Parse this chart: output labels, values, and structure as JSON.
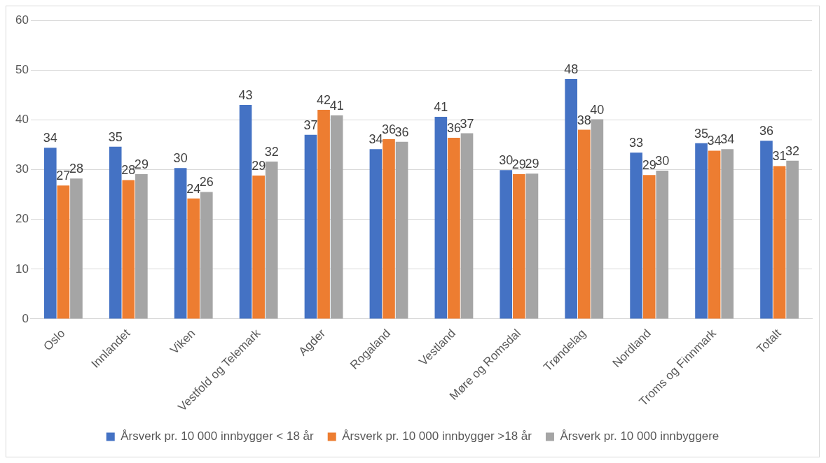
{
  "chart_data": {
    "type": "bar",
    "categories": [
      "Oslo",
      "Innlandet",
      "Viken",
      "Vestfold og Telemark",
      "Agder",
      "Rogaland",
      "Vestland",
      "Møre og Romsdal",
      "Trøndelag",
      "Nordland",
      "Troms og Finnmark",
      "Totalt"
    ],
    "series": [
      {
        "name": "Årsverk pr. 10 000 innbygger < 18 år",
        "color": "#4472c4",
        "values": [
          34.4,
          34.6,
          30.3,
          43.0,
          37.0,
          34.1,
          40.6,
          29.9,
          48.2,
          33.4,
          35.3,
          35.8
        ],
        "value_labels": [
          "34",
          "35",
          "30",
          "43",
          "37",
          "34",
          "41",
          "30",
          "48",
          "33",
          "35",
          "36"
        ]
      },
      {
        "name": "Årsverk pr. 10 000 innbygger >18 år",
        "color": "#ed7d31",
        "values": [
          26.8,
          27.9,
          24.2,
          28.8,
          42.0,
          36.1,
          36.4,
          29.1,
          38.0,
          28.9,
          33.8,
          30.7
        ],
        "value_labels": [
          "27",
          "28",
          "24",
          "29",
          "42",
          "36",
          "36",
          "29",
          "38",
          "29",
          "34",
          "31"
        ]
      },
      {
        "name": "Årsverk pr. 10 000 innbyggere",
        "color": "#a5a5a5",
        "values": [
          28.2,
          29.1,
          25.5,
          31.6,
          40.9,
          35.6,
          37.3,
          29.2,
          40.1,
          29.8,
          34.1,
          31.8
        ],
        "value_labels": [
          "28",
          "29",
          "26",
          "32",
          "41",
          "36",
          "37",
          "29",
          "40",
          "30",
          "34",
          "32"
        ]
      }
    ],
    "ylim": [
      0,
      60
    ],
    "yticks": [
      0,
      10,
      20,
      30,
      40,
      50,
      60
    ],
    "grid": "y",
    "legend": "bottom"
  }
}
